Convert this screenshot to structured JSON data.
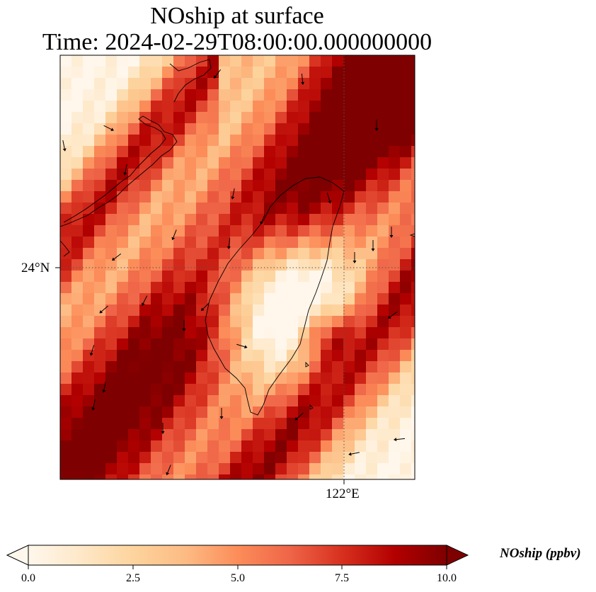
{
  "title_line_1": "NOship at surface",
  "title_line_2": "Time: 2024-02-29T08:00:00.000000000",
  "lat_tick": "24°N",
  "lon_tick": "122°E",
  "colorbar": {
    "label": "NOship (ppbv)",
    "ticks": [
      "0.0",
      "2.5",
      "5.0",
      "7.5",
      "10.0"
    ],
    "vmin": 0,
    "vmax": 10,
    "extend": "both",
    "colormap": [
      "#fff7ec",
      "#fee8c8",
      "#fdd49e",
      "#fdbb84",
      "#fc8d59",
      "#ef6548",
      "#d7301f",
      "#b30000",
      "#7f0000"
    ]
  }
}
